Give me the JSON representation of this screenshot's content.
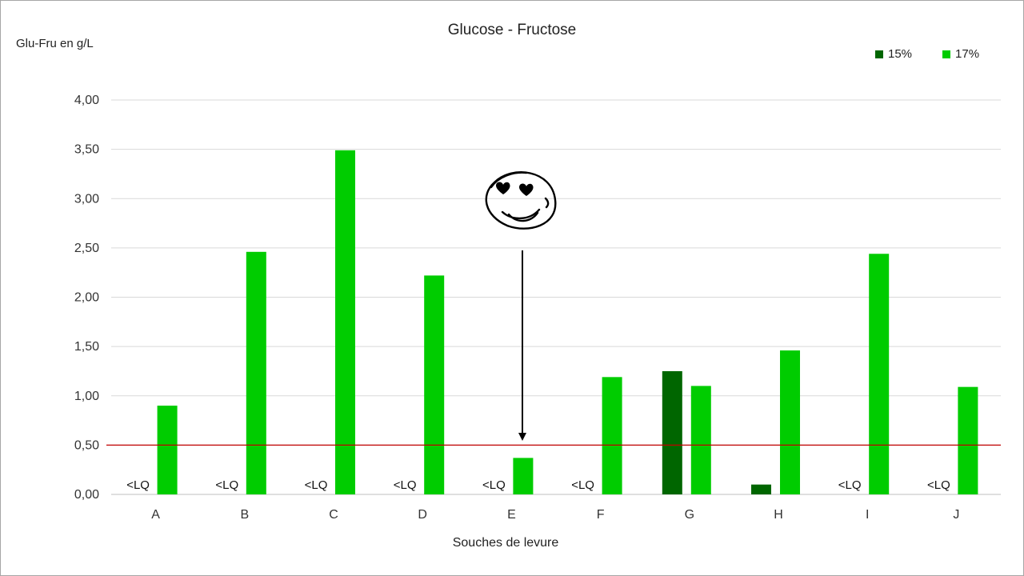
{
  "chart_data": {
    "type": "bar",
    "title": "Glucose - Fructose",
    "ylabel": "Glu-Fru en g/L",
    "xlabel": "Souches de levure",
    "categories": [
      "A",
      "B",
      "C",
      "D",
      "E",
      "F",
      "G",
      "H",
      "I",
      "J"
    ],
    "series": [
      {
        "name": "15%",
        "color": "#006600",
        "values": [
          null,
          null,
          null,
          null,
          null,
          null,
          1.25,
          0.1,
          null,
          null
        ]
      },
      {
        "name": "17%",
        "color": "#00cc00",
        "values": [
          0.9,
          2.46,
          3.49,
          2.22,
          0.37,
          1.19,
          1.1,
          1.46,
          2.44,
          1.09
        ]
      }
    ],
    "below_lq_label": "<LQ",
    "below_lq_categories": [
      "A",
      "B",
      "C",
      "D",
      "E",
      "F",
      "I",
      "J"
    ],
    "yticks": [
      "0,00",
      "0,50",
      "1,00",
      "1,50",
      "2,00",
      "2,50",
      "3,00",
      "3,50",
      "4,00"
    ],
    "ylim": [
      0,
      4
    ],
    "threshold": {
      "value": 0.5,
      "color": "#c00000"
    },
    "grid": true,
    "legend_position": "top-right",
    "annotation": {
      "target_category": "E",
      "description": "hand-drawn heart-eyes smiley with arrow pointing down to bar E"
    }
  }
}
